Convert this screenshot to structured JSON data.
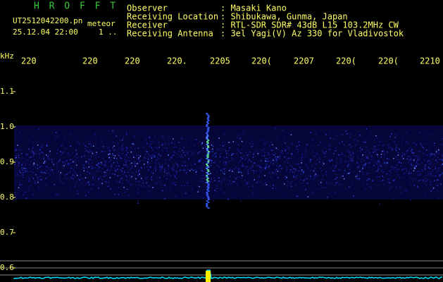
{
  "app": "H R O F F T",
  "file": {
    "name": "UT2512042200.pn",
    "kind": "meteor",
    "time": "25.12.04 22:00",
    "count": "1 .."
  },
  "header": [
    {
      "label": "Observer",
      "value": ": Masaki Kano"
    },
    {
      "label": "Receiving Location",
      "value": ": Shibukawa, Gunma, Japan"
    },
    {
      "label": "Receiver",
      "value": ": RTL-SDR SDR# 43dB L15 103.2MHz CW"
    },
    {
      "label": "Receiving Antenna",
      "value": ": 3el Yagi(V) Az 330 for Vladivostok"
    }
  ],
  "time_labels": [
    "220",
    "220",
    "220",
    "220.",
    "2205",
    "220(",
    "2207",
    "220(",
    "220(",
    "2210"
  ],
  "freq_unit": "kHz",
  "freq_labels": [
    "1.1",
    "1.0",
    "0.9",
    "0.8",
    "0.7",
    "0.6"
  ]
}
